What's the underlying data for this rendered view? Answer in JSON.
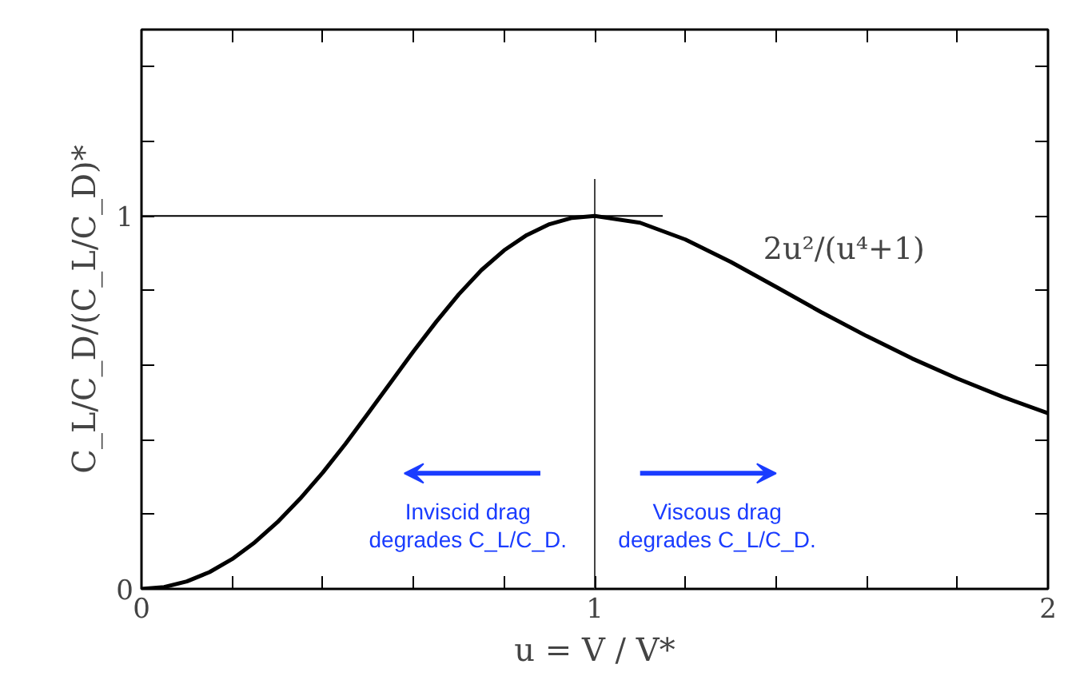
{
  "chart_data": {
    "type": "line",
    "xlabel": "u = V / V*",
    "ylabel": "C_L/C_D/(C_L/C_D)*",
    "x": [
      0,
      0.05,
      0.1,
      0.15,
      0.2,
      0.25,
      0.3,
      0.35,
      0.4,
      0.45,
      0.5,
      0.55,
      0.6,
      0.65,
      0.7,
      0.75,
      0.8,
      0.85,
      0.9,
      0.95,
      1.0,
      1.1,
      1.2,
      1.3,
      1.4,
      1.5,
      1.6,
      1.7,
      1.8,
      1.9,
      2.0
    ],
    "series": [
      {
        "color": "#000000",
        "values": [
          0,
          0.005,
          0.02,
          0.045,
          0.08,
          0.125,
          0.179,
          0.242,
          0.312,
          0.389,
          0.471,
          0.554,
          0.637,
          0.716,
          0.79,
          0.855,
          0.908,
          0.949,
          0.978,
          0.995,
          1.0,
          0.982,
          0.937,
          0.877,
          0.81,
          0.742,
          0.678,
          0.618,
          0.564,
          0.515,
          0.471
        ]
      }
    ],
    "xlim": [
      0,
      2
    ],
    "ylim": [
      0,
      1.5
    ],
    "xticks": [
      0,
      {
        "value": 0.2,
        "label": null
      },
      {
        "value": 0.4,
        "label": null
      },
      {
        "value": 0.6,
        "label": null
      },
      {
        "value": 0.8,
        "label": null
      },
      1,
      {
        "value": 1.2,
        "label": null
      },
      {
        "value": 1.4,
        "label": null
      },
      {
        "value": 1.6,
        "label": null
      },
      {
        "value": 1.8,
        "label": null
      },
      2
    ],
    "yticks": [
      0,
      {
        "value": 0.2,
        "label": null
      },
      {
        "value": 0.4,
        "label": null
      },
      {
        "value": 0.6,
        "label": null
      },
      {
        "value": 0.8,
        "label": null
      },
      1,
      {
        "value": 1.2,
        "label": null
      },
      {
        "value": 1.4,
        "label": null
      }
    ],
    "ref_lines": [
      {
        "axis": "y",
        "value": 1,
        "color": "#000000"
      },
      {
        "axis": "x",
        "value": 1,
        "color": "#444444"
      }
    ],
    "annotations": [
      "2u²/(u⁴+1)",
      "Inviscid drag\ndegrades C_L/C_D.",
      "Viscous drag\ndegrades C_L/C_D."
    ],
    "marker": "none",
    "line_style": "solid",
    "grid": false
  }
}
